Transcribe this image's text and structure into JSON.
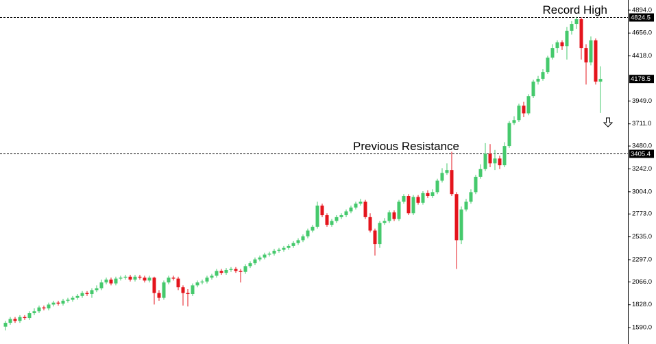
{
  "chart_data": {
    "type": "candlestick",
    "open": [
      1600,
      1640,
      1680,
      1660,
      1700,
      1690,
      1740,
      1760,
      1800,
      1790,
      1830,
      1850,
      1840,
      1870,
      1880,
      1900,
      1920,
      1950,
      1940,
      1980,
      2000,
      2060,
      2090,
      2050,
      2100,
      2110,
      2120,
      2090,
      2120,
      2110,
      2080,
      2110,
      1950,
      1900,
      2060,
      2110,
      2100,
      2010,
      1950,
      1940,
      2030,
      2060,
      2070,
      2110,
      2130,
      2180,
      2160,
      2190,
      2200,
      2180,
      2170,
      2230,
      2260,
      2300,
      2320,
      2350,
      2360,
      2390,
      2400,
      2420,
      2440,
      2470,
      2500,
      2540,
      2600,
      2640,
      2860,
      2760,
      2660,
      2700,
      2740,
      2760,
      2800,
      2840,
      2880,
      2900,
      2740,
      2600,
      2460,
      2680,
      2700,
      2790,
      2720,
      2900,
      2960,
      2780,
      2950,
      2890,
      2990,
      2960,
      3000,
      3120,
      3200,
      3230,
      2980,
      2500,
      2820,
      2900,
      3000,
      3160,
      3240,
      3400,
      3300,
      3350,
      3280,
      3480,
      3720,
      3750,
      3900,
      3820,
      4000,
      4150,
      4180,
      4250,
      4400,
      4500,
      4560,
      4520,
      4680,
      4750,
      4800,
      4500,
      4350,
      4580,
      4150
    ],
    "high": [
      1660,
      1700,
      1700,
      1720,
      1720,
      1760,
      1790,
      1820,
      1820,
      1850,
      1870,
      1870,
      1890,
      1900,
      1920,
      1940,
      1970,
      1970,
      2000,
      2030,
      2090,
      2110,
      2110,
      2120,
      2130,
      2140,
      2140,
      2140,
      2140,
      2130,
      2130,
      2120,
      1980,
      2080,
      2130,
      2130,
      2120,
      2030,
      1990,
      2050,
      2080,
      2090,
      2130,
      2150,
      2200,
      2200,
      2210,
      2220,
      2220,
      2200,
      2250,
      2280,
      2320,
      2340,
      2370,
      2380,
      2410,
      2420,
      2440,
      2460,
      2490,
      2520,
      2560,
      2620,
      2660,
      2900,
      2880,
      2780,
      2720,
      2760,
      2780,
      2820,
      2860,
      2900,
      2930,
      2920,
      2780,
      2620,
      2700,
      2730,
      2810,
      2810,
      2920,
      2980,
      2980,
      2970,
      2970,
      3010,
      3020,
      3030,
      3140,
      3250,
      3300,
      3420,
      3000,
      2850,
      2930,
      3030,
      3180,
      3290,
      3510,
      3500,
      3440,
      3380,
      3520,
      3740,
      3790,
      3920,
      3940,
      4020,
      4170,
      4210,
      4280,
      4420,
      4540,
      4580,
      4580,
      4720,
      4780,
      4824.5,
      4820,
      4540,
      4620,
      4600,
      4310
    ],
    "low": [
      1560,
      1620,
      1640,
      1640,
      1670,
      1670,
      1720,
      1740,
      1770,
      1770,
      1810,
      1820,
      1820,
      1850,
      1860,
      1880,
      1900,
      1920,
      1900,
      1960,
      1980,
      2040,
      2030,
      2030,
      2080,
      2090,
      2070,
      2070,
      2090,
      2060,
      2060,
      1830,
      1870,
      1880,
      2040,
      2080,
      1980,
      1820,
      1810,
      1920,
      2010,
      2040,
      2050,
      2090,
      2110,
      2140,
      2140,
      2170,
      2160,
      2060,
      2150,
      2210,
      2240,
      2280,
      2300,
      2330,
      2340,
      2370,
      2380,
      2400,
      2420,
      2450,
      2480,
      2520,
      2580,
      2620,
      2740,
      2640,
      2640,
      2680,
      2720,
      2740,
      2780,
      2820,
      2860,
      2720,
      2580,
      2340,
      2420,
      2660,
      2680,
      2700,
      2700,
      2880,
      2760,
      2760,
      2870,
      2870,
      2940,
      2940,
      2980,
      3100,
      3180,
      2960,
      2200,
      2460,
      2800,
      2880,
      2980,
      3140,
      3220,
      3260,
      3230,
      3240,
      3260,
      3460,
      3700,
      3730,
      3780,
      3800,
      3980,
      4120,
      4160,
      4230,
      4380,
      4450,
      4480,
      4380,
      4640,
      4700,
      4380,
      4120,
      4320,
      4120,
      3824
    ],
    "close": [
      1640,
      1680,
      1660,
      1700,
      1690,
      1740,
      1760,
      1800,
      1790,
      1830,
      1850,
      1840,
      1870,
      1880,
      1900,
      1920,
      1950,
      1940,
      1980,
      2000,
      2060,
      2090,
      2050,
      2100,
      2110,
      2120,
      2090,
      2120,
      2110,
      2080,
      2110,
      1950,
      1900,
      2060,
      2110,
      2100,
      2010,
      1950,
      1940,
      2030,
      2060,
      2070,
      2110,
      2130,
      2180,
      2160,
      2190,
      2200,
      2180,
      2170,
      2230,
      2260,
      2300,
      2320,
      2350,
      2360,
      2390,
      2400,
      2420,
      2440,
      2470,
      2500,
      2540,
      2600,
      2640,
      2860,
      2760,
      2660,
      2700,
      2740,
      2760,
      2800,
      2840,
      2880,
      2900,
      2740,
      2600,
      2460,
      2680,
      2700,
      2790,
      2720,
      2900,
      2960,
      2780,
      2950,
      2890,
      2990,
      2960,
      3000,
      3120,
      3200,
      3230,
      2980,
      2500,
      2820,
      2900,
      3000,
      3160,
      3240,
      3400,
      3300,
      3350,
      3280,
      3480,
      3720,
      3750,
      3900,
      3820,
      4000,
      4150,
      4180,
      4250,
      4400,
      4500,
      4560,
      4520,
      4680,
      4750,
      4800,
      4500,
      4350,
      4580,
      4150,
      4178.5
    ],
    "up_color": "#45c96c",
    "down_color": "#e4141c",
    "ylim": [
      1505,
      5000
    ],
    "yticks": [
      {
        "value": 4894,
        "label": "4894.0"
      },
      {
        "value": 4656,
        "label": "4656.0"
      },
      {
        "value": 4418,
        "label": "4418.0"
      },
      {
        "value": 3949,
        "label": "3949.0"
      },
      {
        "value": 3711,
        "label": "3711.0"
      },
      {
        "value": 3480,
        "label": "3480.0"
      },
      {
        "value": 3242,
        "label": "3242.0"
      },
      {
        "value": 3004,
        "label": "3004.0"
      },
      {
        "value": 2773,
        "label": "2773.0"
      },
      {
        "value": 2535,
        "label": "2535.0"
      },
      {
        "value": 2297,
        "label": "2297.0"
      },
      {
        "value": 2066,
        "label": "2066.0"
      },
      {
        "value": 1828,
        "label": "1828.0"
      },
      {
        "value": 1590,
        "label": "1590.0"
      }
    ],
    "annotations": [
      {
        "label": "Record High",
        "value": 4824.5
      },
      {
        "label": "Previous Resistance",
        "value": 3405.4
      }
    ]
  }
}
